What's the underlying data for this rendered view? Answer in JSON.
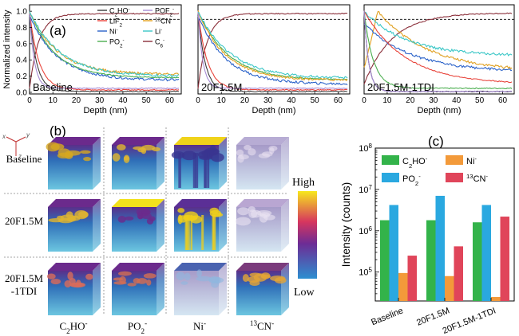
{
  "colors": {
    "C2HO": "#3c3c3c",
    "LiF2": "#e8453c",
    "Ni": "#2a62c9",
    "PO2": "#4caf50",
    "POF2": "#a78bd4",
    "CN13": "#e0a020",
    "Li": "#3cc7c7",
    "C6": "#8b2f3a",
    "bar_C2HO": "#33b34a",
    "bar_PO2": "#2aa8e0",
    "bar_Ni": "#f39a3a",
    "bar_CN": "#e0455a"
  },
  "panels": {
    "a_label": "(a)",
    "b_label": "(b)",
    "c_label": "(c)"
  },
  "chart_data": [
    {
      "type": "line",
      "panel": "a-1",
      "title": "Baseline",
      "xlabel": "Depth (nm)",
      "ylabel": "Normalized intensity",
      "xlim": [
        0,
        65
      ],
      "ylim": [
        -0.02,
        1.08
      ],
      "xticks": [
        "0",
        "10",
        "20",
        "30",
        "40",
        "50",
        "60"
      ],
      "yticks": [
        "0.0",
        "0.2",
        "0.4",
        "0.6",
        "0.8",
        "1.0"
      ],
      "reference_line": 0.9,
      "legend": [
        "C2HO-",
        "LiF2-",
        "Ni-",
        "PO2-",
        "POF2-",
        "13CN-",
        "Li-",
        "C6-"
      ],
      "series": [
        {
          "name": "C6-",
          "start": 0.05,
          "end": 0.97,
          "decay": 4
        },
        {
          "name": "C2HO-",
          "start": 1.0,
          "end": 0.01,
          "decay": 3
        },
        {
          "name": "LiF2-",
          "start": 1.0,
          "end": 0.03,
          "decay": 4
        },
        {
          "name": "Ni-",
          "start": 0.95,
          "end": 0.15,
          "decay": 12
        },
        {
          "name": "PO2-",
          "start": 1.0,
          "end": 0.18,
          "decay": 11
        },
        {
          "name": "POF2-",
          "start": 1.0,
          "end": 0.05,
          "decay": 2
        },
        {
          "name": "13CN-",
          "start": 1.0,
          "end": 0.22,
          "decay": 12
        },
        {
          "name": "Li-",
          "start": 1.0,
          "end": 0.2,
          "decay": 13
        }
      ]
    },
    {
      "type": "line",
      "panel": "a-2",
      "title": "20F1.5M",
      "xlabel": "Depth (nm)",
      "xlim": [
        0,
        65
      ],
      "ylim": [
        -0.02,
        1.08
      ],
      "xticks": [
        "0",
        "10",
        "20",
        "30",
        "40",
        "50",
        "60"
      ],
      "reference_line": 0.9,
      "series": [
        {
          "name": "C6-",
          "start": 0.05,
          "end": 0.97,
          "decay": 4
        },
        {
          "name": "C2HO-",
          "start": 1.0,
          "end": 0.01,
          "decay": 3
        },
        {
          "name": "LiF2-",
          "start": 1.0,
          "end": 0.03,
          "decay": 4
        },
        {
          "name": "Ni-",
          "start": 0.95,
          "end": 0.1,
          "decay": 12
        },
        {
          "name": "PO2-",
          "start": 1.0,
          "end": 0.15,
          "decay": 13
        },
        {
          "name": "POF2-",
          "start": 1.0,
          "end": 0.05,
          "decay": 2
        },
        {
          "name": "13CN-",
          "start": 1.0,
          "end": 0.15,
          "decay": 12
        },
        {
          "name": "Li-",
          "start": 1.0,
          "end": 0.17,
          "decay": 14
        }
      ]
    },
    {
      "type": "line",
      "panel": "a-3",
      "title": "20F1.5M-1TDI",
      "xlabel": "Depth (nm)",
      "xlim": [
        0,
        65
      ],
      "ylim": [
        -0.02,
        1.08
      ],
      "xticks": [
        "0",
        "10",
        "20",
        "30",
        "40",
        "50",
        "60"
      ],
      "reference_line": 0.9,
      "series": [
        {
          "name": "C6-",
          "start": 0.1,
          "end": 0.98,
          "decay": 12
        },
        {
          "name": "13CN-",
          "start": 0.3,
          "peak": 1.0,
          "peak_x": 6,
          "end": 0.25,
          "decay": 22
        },
        {
          "name": "Li-",
          "start": 1.0,
          "end": 0.45,
          "decay": 18
        },
        {
          "name": "Ni-",
          "start": 0.85,
          "end": 0.25,
          "decay": 20
        },
        {
          "name": "LiF2-",
          "start": 1.0,
          "end": 0.1,
          "decay": 18
        },
        {
          "name": "PO2-",
          "start": 1.0,
          "end": 0.05,
          "decay": 4
        },
        {
          "name": "C2HO-",
          "start": 1.0,
          "end": 0.01,
          "decay": 2
        },
        {
          "name": "POF2-",
          "start": 1.0,
          "end": 0.01,
          "decay": 2
        }
      ]
    },
    {
      "type": "bar",
      "panel": "c",
      "ylabel": "Intensity (counts)",
      "yscale": "log",
      "ylim": [
        20000,
        100000000
      ],
      "yticks": [
        "10^5",
        "10^6",
        "10^7",
        "10^8"
      ],
      "categories": [
        "Baseline",
        "20F1.5M",
        "20F1.5M-1TDI"
      ],
      "legend": [
        "C2HO-",
        "PO2-",
        "Ni-",
        "13CN-"
      ],
      "series": [
        {
          "name": "C2HO-",
          "values": [
            1800000,
            1800000,
            1600000
          ]
        },
        {
          "name": "PO2-",
          "values": [
            4200000,
            7000000,
            4200000
          ]
        },
        {
          "name": "Ni-",
          "values": [
            95000,
            80000,
            25000
          ]
        },
        {
          "name": "13CN-",
          "values": [
            250000,
            420000,
            2200000
          ]
        }
      ]
    }
  ],
  "maps": {
    "row_labels": [
      "Baseline",
      "20F1.5M",
      "20F1.5M\n-1TDI"
    ],
    "col_labels": [
      "C2HO-",
      "PO2-",
      "Ni-",
      "13CN-"
    ],
    "colorbar_high": "High",
    "colorbar_low": "Low",
    "axes": {
      "x": "x",
      "y": "y",
      "z": "z"
    }
  }
}
